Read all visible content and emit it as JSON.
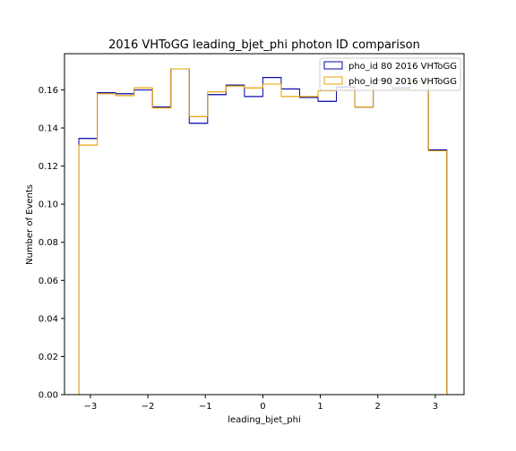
{
  "chart_data": {
    "type": "histogram-step",
    "title": "2016 VHToGG leading_bjet_phi photon ID comparison",
    "xlabel": "leading_bjet_phi",
    "ylabel": "Number of Events",
    "xlim": [
      -3.45,
      3.5
    ],
    "ylim": [
      0.0,
      0.179
    ],
    "xticks": [
      -3,
      -2,
      -1,
      0,
      1,
      2,
      3
    ],
    "xtick_labels": [
      "−3",
      "−2",
      "−1",
      "0",
      "1",
      "2",
      "3"
    ],
    "yticks": [
      0.0,
      0.02,
      0.04,
      0.06,
      0.08,
      0.1,
      0.12,
      0.14,
      0.16
    ],
    "ytick_labels": [
      "0.00",
      "0.02",
      "0.04",
      "0.06",
      "0.08",
      "0.10",
      "0.12",
      "0.14",
      "0.16"
    ],
    "grid": false,
    "legend_position": "top-right",
    "bin_edges": [
      -3.2,
      -2.88,
      -2.56,
      -2.24,
      -1.92,
      -1.6,
      -1.28,
      -0.96,
      -0.64,
      -0.32,
      0.0,
      0.32,
      0.64,
      0.96,
      1.28,
      1.6,
      1.92,
      2.24,
      2.56,
      2.88,
      3.2
    ],
    "series": [
      {
        "name": "pho_id 80 2016 VHToGG",
        "color": "#0000aa",
        "values": [
          0.1345,
          0.1585,
          0.158,
          0.16,
          0.151,
          0.171,
          0.1425,
          0.1575,
          0.1625,
          0.1565,
          0.1665,
          0.1605,
          0.156,
          0.154,
          0.1615,
          0.151,
          0.165,
          0.161,
          0.1645,
          0.1285
        ]
      },
      {
        "name": "pho_id 90 2016 VHToGG",
        "color": "#e6a000",
        "values": [
          0.131,
          0.158,
          0.157,
          0.161,
          0.1505,
          0.171,
          0.146,
          0.159,
          0.162,
          0.161,
          0.163,
          0.1565,
          0.1565,
          0.1595,
          0.16,
          0.151,
          0.1655,
          0.1605,
          0.1645,
          0.128
        ]
      }
    ]
  }
}
